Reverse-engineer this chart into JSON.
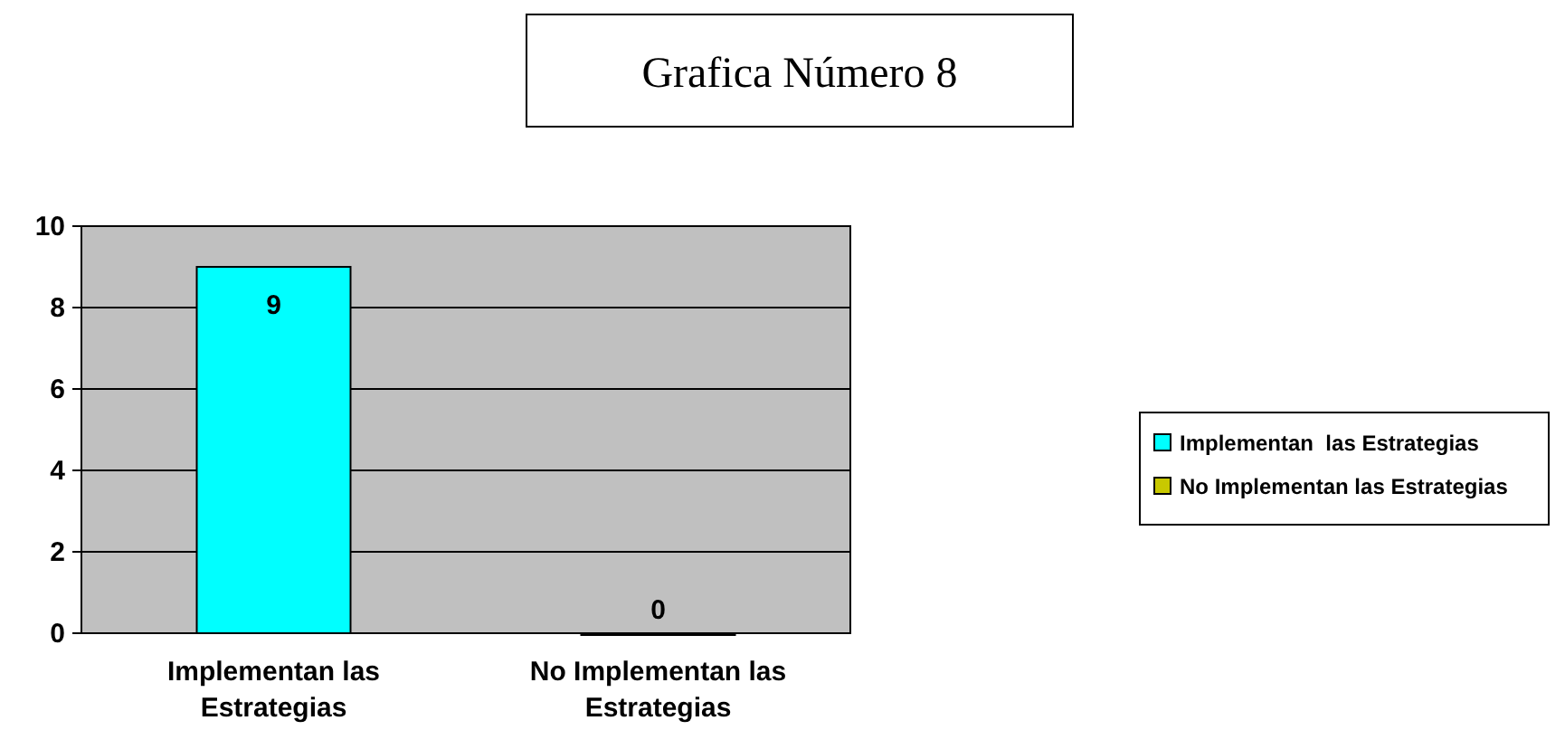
{
  "chart_data": {
    "type": "bar",
    "title": "Grafica Número 8",
    "categories": [
      "Implementan las Estrategias",
      "No Implementan las Estrategias"
    ],
    "series": [
      {
        "name": "Implementan  las Estrategias",
        "color": "#00ffff",
        "values": [
          9,
          null
        ]
      },
      {
        "name": "No Implementan las Estrategias",
        "color": "#c8c800",
        "values": [
          null,
          0
        ]
      }
    ],
    "ylim": [
      0,
      10
    ],
    "yticks": [
      0,
      2,
      4,
      6,
      8,
      10
    ],
    "grid": "y",
    "data_labels": true,
    "legend": "right"
  }
}
